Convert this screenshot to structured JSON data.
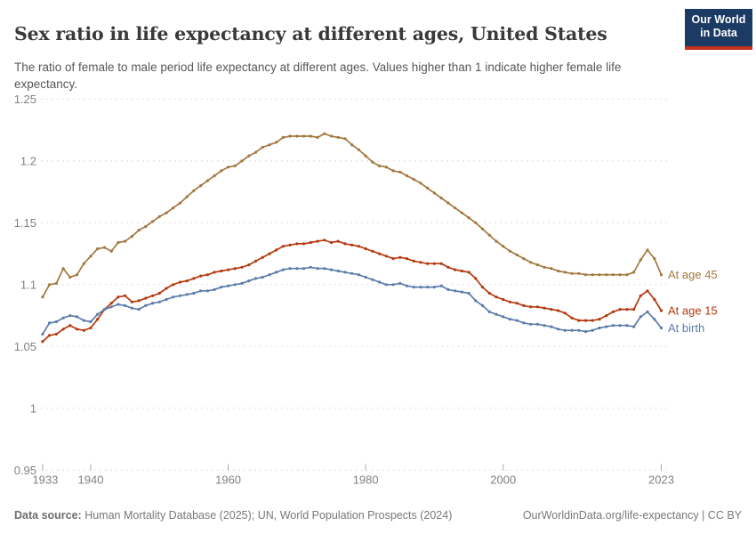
{
  "header": {
    "title": "Sex ratio in life expectancy at different ages, United States",
    "subtitle": "The ratio of female to male period life expectancy at different ages. Values higher than 1 indicate higher female life expectancy.",
    "logo": {
      "line1": "Our World",
      "line2": "in Data"
    }
  },
  "footer": {
    "source_label": "Data source:",
    "source_text": " Human Mortality Database (2025); UN, World Population Prospects (2024)",
    "link_text": "OurWorldinData.org/life-expectancy | CC BY"
  },
  "colors": {
    "age45_line": "#a1783e",
    "age15_line": "#b5390f",
    "birth_line": "#5b7cab",
    "gridline": "#dedede",
    "tick": "#aaaaaa",
    "axis_text": "#818181",
    "logo_navy": "#1b3a64",
    "logo_red": "#c4311f"
  },
  "chart_data": {
    "type": "line",
    "title": "Sex ratio in life expectancy at different ages, United States",
    "xlabel": "",
    "ylabel": "",
    "ylim": [
      0.95,
      1.25
    ],
    "grid": "horizontal-dashed",
    "legend_position": "right-end-labels",
    "y_ticks": [
      0.95,
      1,
      1.05,
      1.1,
      1.15,
      1.2,
      1.25
    ],
    "y_tick_labels": [
      "0.95",
      "1",
      "1.05",
      "1.1",
      "1.15",
      "1.2",
      "1.25"
    ],
    "x_tick_years": [
      1933,
      1940,
      1960,
      1980,
      2000,
      2023
    ],
    "x_tick_labels": [
      "1933",
      "1940",
      "1960",
      "1980",
      "2000",
      "2023"
    ],
    "x": [
      1933,
      1934,
      1935,
      1936,
      1937,
      1938,
      1939,
      1940,
      1941,
      1942,
      1943,
      1944,
      1945,
      1946,
      1947,
      1948,
      1949,
      1950,
      1951,
      1952,
      1953,
      1954,
      1955,
      1956,
      1957,
      1958,
      1959,
      1960,
      1961,
      1962,
      1963,
      1964,
      1965,
      1966,
      1967,
      1968,
      1969,
      1970,
      1971,
      1972,
      1973,
      1974,
      1975,
      1976,
      1977,
      1978,
      1979,
      1980,
      1981,
      1982,
      1983,
      1984,
      1985,
      1986,
      1987,
      1988,
      1989,
      1990,
      1991,
      1992,
      1993,
      1994,
      1995,
      1996,
      1997,
      1998,
      1999,
      2000,
      2001,
      2002,
      2003,
      2004,
      2005,
      2006,
      2007,
      2008,
      2009,
      2010,
      2011,
      2012,
      2013,
      2014,
      2015,
      2016,
      2017,
      2018,
      2019,
      2020,
      2021,
      2022,
      2023
    ],
    "series": [
      {
        "name": "At age 45",
        "color": "#a1783e",
        "values": [
          1.09,
          1.1,
          1.101,
          1.113,
          1.106,
          1.108,
          1.117,
          1.123,
          1.129,
          1.13,
          1.127,
          1.134,
          1.135,
          1.139,
          1.144,
          1.147,
          1.151,
          1.155,
          1.158,
          1.162,
          1.166,
          1.171,
          1.176,
          1.18,
          1.184,
          1.188,
          1.192,
          1.195,
          1.196,
          1.2,
          1.204,
          1.207,
          1.211,
          1.213,
          1.215,
          1.219,
          1.22,
          1.22,
          1.22,
          1.22,
          1.219,
          1.222,
          1.22,
          1.219,
          1.218,
          1.213,
          1.209,
          1.204,
          1.199,
          1.196,
          1.195,
          1.192,
          1.191,
          1.188,
          1.185,
          1.182,
          1.178,
          1.174,
          1.17,
          1.166,
          1.162,
          1.158,
          1.154,
          1.15,
          1.145,
          1.14,
          1.135,
          1.131,
          1.127,
          1.124,
          1.121,
          1.118,
          1.116,
          1.114,
          1.113,
          1.111,
          1.11,
          1.109,
          1.109,
          1.108,
          1.108,
          1.108,
          1.108,
          1.108,
          1.108,
          1.108,
          1.11,
          1.12,
          1.128,
          1.121,
          1.108
        ]
      },
      {
        "name": "At age 15",
        "color": "#b5390f",
        "values": [
          1.054,
          1.059,
          1.06,
          1.064,
          1.067,
          1.064,
          1.063,
          1.065,
          1.072,
          1.08,
          1.085,
          1.09,
          1.091,
          1.086,
          1.087,
          1.089,
          1.091,
          1.093,
          1.097,
          1.1,
          1.102,
          1.103,
          1.105,
          1.107,
          1.108,
          1.11,
          1.111,
          1.112,
          1.113,
          1.114,
          1.116,
          1.119,
          1.122,
          1.125,
          1.128,
          1.131,
          1.132,
          1.133,
          1.133,
          1.134,
          1.135,
          1.136,
          1.134,
          1.135,
          1.133,
          1.132,
          1.131,
          1.129,
          1.127,
          1.125,
          1.123,
          1.121,
          1.122,
          1.121,
          1.119,
          1.118,
          1.117,
          1.117,
          1.117,
          1.114,
          1.112,
          1.111,
          1.11,
          1.105,
          1.098,
          1.093,
          1.09,
          1.088,
          1.086,
          1.085,
          1.083,
          1.082,
          1.082,
          1.081,
          1.08,
          1.079,
          1.077,
          1.073,
          1.071,
          1.071,
          1.071,
          1.072,
          1.075,
          1.078,
          1.08,
          1.08,
          1.08,
          1.091,
          1.095,
          1.088,
          1.079
        ]
      },
      {
        "name": "At birth",
        "color": "#5b7cab",
        "values": [
          1.06,
          1.069,
          1.07,
          1.073,
          1.075,
          1.074,
          1.071,
          1.07,
          1.076,
          1.08,
          1.082,
          1.084,
          1.083,
          1.081,
          1.08,
          1.083,
          1.085,
          1.086,
          1.088,
          1.09,
          1.091,
          1.092,
          1.093,
          1.095,
          1.095,
          1.096,
          1.098,
          1.099,
          1.1,
          1.101,
          1.103,
          1.105,
          1.106,
          1.108,
          1.11,
          1.112,
          1.113,
          1.113,
          1.113,
          1.114,
          1.113,
          1.113,
          1.112,
          1.111,
          1.11,
          1.109,
          1.108,
          1.106,
          1.104,
          1.102,
          1.1,
          1.1,
          1.101,
          1.099,
          1.098,
          1.098,
          1.098,
          1.098,
          1.099,
          1.096,
          1.095,
          1.094,
          1.093,
          1.087,
          1.083,
          1.078,
          1.076,
          1.074,
          1.072,
          1.071,
          1.069,
          1.068,
          1.068,
          1.067,
          1.066,
          1.064,
          1.063,
          1.063,
          1.063,
          1.062,
          1.063,
          1.065,
          1.066,
          1.067,
          1.067,
          1.067,
          1.066,
          1.074,
          1.078,
          1.072,
          1.065
        ]
      }
    ]
  }
}
